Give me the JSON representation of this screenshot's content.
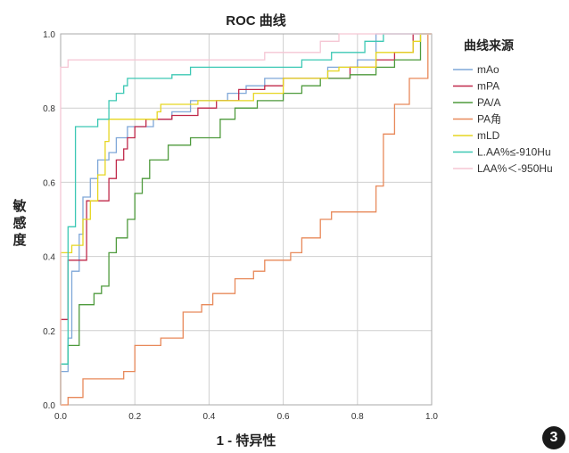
{
  "chart_data": {
    "type": "line",
    "title": "ROC 曲线",
    "xlabel": "1 - 特异性",
    "ylabel": "敏感度",
    "xlim": [
      0,
      1
    ],
    "ylim": [
      0,
      1
    ],
    "xticks": [
      "0.0",
      "0.2",
      "0.4",
      "0.6",
      "0.8",
      "1.0"
    ],
    "yticks": [
      "0.0",
      "0.2",
      "0.4",
      "0.6",
      "0.8",
      "1.0"
    ],
    "grid": true,
    "legend_title": "曲线来源",
    "legend_position": "right",
    "series": [
      {
        "name": "mAo",
        "color": "#7fa7d8",
        "points": [
          [
            0,
            0
          ],
          [
            0,
            0.09
          ],
          [
            0.02,
            0.09
          ],
          [
            0.02,
            0.18
          ],
          [
            0.03,
            0.18
          ],
          [
            0.03,
            0.36
          ],
          [
            0.05,
            0.36
          ],
          [
            0.05,
            0.46
          ],
          [
            0.06,
            0.46
          ],
          [
            0.06,
            0.56
          ],
          [
            0.08,
            0.56
          ],
          [
            0.08,
            0.61
          ],
          [
            0.1,
            0.61
          ],
          [
            0.1,
            0.66
          ],
          [
            0.13,
            0.66
          ],
          [
            0.13,
            0.68
          ],
          [
            0.15,
            0.68
          ],
          [
            0.15,
            0.72
          ],
          [
            0.18,
            0.72
          ],
          [
            0.18,
            0.75
          ],
          [
            0.25,
            0.75
          ],
          [
            0.25,
            0.77
          ],
          [
            0.3,
            0.77
          ],
          [
            0.3,
            0.79
          ],
          [
            0.35,
            0.79
          ],
          [
            0.35,
            0.82
          ],
          [
            0.45,
            0.82
          ],
          [
            0.45,
            0.84
          ],
          [
            0.5,
            0.84
          ],
          [
            0.5,
            0.86
          ],
          [
            0.55,
            0.86
          ],
          [
            0.55,
            0.88
          ],
          [
            0.72,
            0.88
          ],
          [
            0.72,
            0.91
          ],
          [
            0.8,
            0.91
          ],
          [
            0.8,
            0.93
          ],
          [
            0.85,
            0.93
          ],
          [
            0.85,
            1.0
          ],
          [
            1,
            1
          ]
        ]
      },
      {
        "name": "mPA",
        "color": "#c0294a",
        "points": [
          [
            0,
            0
          ],
          [
            0,
            0.23
          ],
          [
            0.02,
            0.23
          ],
          [
            0.02,
            0.39
          ],
          [
            0.07,
            0.39
          ],
          [
            0.07,
            0.55
          ],
          [
            0.13,
            0.55
          ],
          [
            0.13,
            0.61
          ],
          [
            0.15,
            0.61
          ],
          [
            0.15,
            0.66
          ],
          [
            0.17,
            0.66
          ],
          [
            0.17,
            0.69
          ],
          [
            0.18,
            0.69
          ],
          [
            0.18,
            0.72
          ],
          [
            0.2,
            0.72
          ],
          [
            0.2,
            0.75
          ],
          [
            0.23,
            0.75
          ],
          [
            0.23,
            0.77
          ],
          [
            0.3,
            0.77
          ],
          [
            0.3,
            0.78
          ],
          [
            0.37,
            0.78
          ],
          [
            0.37,
            0.8
          ],
          [
            0.42,
            0.8
          ],
          [
            0.42,
            0.82
          ],
          [
            0.48,
            0.82
          ],
          [
            0.48,
            0.85
          ],
          [
            0.55,
            0.85
          ],
          [
            0.55,
            0.86
          ],
          [
            0.6,
            0.86
          ],
          [
            0.6,
            0.88
          ],
          [
            0.78,
            0.88
          ],
          [
            0.78,
            0.91
          ],
          [
            0.85,
            0.91
          ],
          [
            0.85,
            0.93
          ],
          [
            0.9,
            0.93
          ],
          [
            0.9,
            0.95
          ],
          [
            0.95,
            0.95
          ],
          [
            0.95,
            1.0
          ],
          [
            1,
            1
          ]
        ]
      },
      {
        "name": "PA/A",
        "color": "#4e9a3c",
        "points": [
          [
            0,
            0
          ],
          [
            0,
            0.11
          ],
          [
            0.02,
            0.11
          ],
          [
            0.02,
            0.16
          ],
          [
            0.05,
            0.16
          ],
          [
            0.05,
            0.27
          ],
          [
            0.09,
            0.27
          ],
          [
            0.09,
            0.3
          ],
          [
            0.11,
            0.3
          ],
          [
            0.11,
            0.32
          ],
          [
            0.13,
            0.32
          ],
          [
            0.13,
            0.41
          ],
          [
            0.15,
            0.41
          ],
          [
            0.15,
            0.45
          ],
          [
            0.18,
            0.45
          ],
          [
            0.18,
            0.5
          ],
          [
            0.2,
            0.5
          ],
          [
            0.2,
            0.57
          ],
          [
            0.22,
            0.57
          ],
          [
            0.22,
            0.61
          ],
          [
            0.24,
            0.61
          ],
          [
            0.24,
            0.66
          ],
          [
            0.29,
            0.66
          ],
          [
            0.29,
            0.7
          ],
          [
            0.35,
            0.7
          ],
          [
            0.35,
            0.72
          ],
          [
            0.43,
            0.72
          ],
          [
            0.43,
            0.77
          ],
          [
            0.47,
            0.77
          ],
          [
            0.47,
            0.8
          ],
          [
            0.53,
            0.8
          ],
          [
            0.53,
            0.82
          ],
          [
            0.6,
            0.82
          ],
          [
            0.6,
            0.84
          ],
          [
            0.65,
            0.84
          ],
          [
            0.65,
            0.86
          ],
          [
            0.7,
            0.86
          ],
          [
            0.7,
            0.88
          ],
          [
            0.78,
            0.88
          ],
          [
            0.78,
            0.89
          ],
          [
            0.85,
            0.89
          ],
          [
            0.85,
            0.91
          ],
          [
            0.9,
            0.91
          ],
          [
            0.9,
            0.93
          ],
          [
            0.97,
            0.93
          ],
          [
            0.97,
            1.0
          ],
          [
            1,
            1
          ]
        ]
      },
      {
        "name": "PA角",
        "color": "#e8895a",
        "points": [
          [
            0,
            0
          ],
          [
            0.02,
            0
          ],
          [
            0.02,
            0.02
          ],
          [
            0.06,
            0.02
          ],
          [
            0.06,
            0.07
          ],
          [
            0.17,
            0.07
          ],
          [
            0.17,
            0.09
          ],
          [
            0.2,
            0.09
          ],
          [
            0.2,
            0.16
          ],
          [
            0.27,
            0.16
          ],
          [
            0.27,
            0.18
          ],
          [
            0.33,
            0.18
          ],
          [
            0.33,
            0.25
          ],
          [
            0.38,
            0.25
          ],
          [
            0.38,
            0.27
          ],
          [
            0.41,
            0.27
          ],
          [
            0.41,
            0.3
          ],
          [
            0.47,
            0.3
          ],
          [
            0.47,
            0.34
          ],
          [
            0.52,
            0.34
          ],
          [
            0.52,
            0.36
          ],
          [
            0.55,
            0.36
          ],
          [
            0.55,
            0.39
          ],
          [
            0.62,
            0.39
          ],
          [
            0.62,
            0.41
          ],
          [
            0.65,
            0.41
          ],
          [
            0.65,
            0.45
          ],
          [
            0.7,
            0.45
          ],
          [
            0.7,
            0.5
          ],
          [
            0.73,
            0.5
          ],
          [
            0.73,
            0.52
          ],
          [
            0.85,
            0.52
          ],
          [
            0.85,
            0.59
          ],
          [
            0.87,
            0.59
          ],
          [
            0.87,
            0.73
          ],
          [
            0.9,
            0.73
          ],
          [
            0.9,
            0.81
          ],
          [
            0.94,
            0.81
          ],
          [
            0.94,
            0.88
          ],
          [
            0.99,
            0.88
          ],
          [
            0.99,
            1.0
          ],
          [
            1,
            1
          ]
        ]
      },
      {
        "name": "mLD",
        "color": "#e6d620",
        "points": [
          [
            0,
            0
          ],
          [
            0,
            0.41
          ],
          [
            0.03,
            0.41
          ],
          [
            0.03,
            0.43
          ],
          [
            0.06,
            0.43
          ],
          [
            0.06,
            0.5
          ],
          [
            0.08,
            0.5
          ],
          [
            0.08,
            0.55
          ],
          [
            0.1,
            0.55
          ],
          [
            0.1,
            0.62
          ],
          [
            0.12,
            0.62
          ],
          [
            0.12,
            0.71
          ],
          [
            0.13,
            0.71
          ],
          [
            0.13,
            0.77
          ],
          [
            0.26,
            0.77
          ],
          [
            0.26,
            0.79
          ],
          [
            0.27,
            0.79
          ],
          [
            0.27,
            0.81
          ],
          [
            0.37,
            0.81
          ],
          [
            0.37,
            0.82
          ],
          [
            0.52,
            0.82
          ],
          [
            0.52,
            0.84
          ],
          [
            0.6,
            0.84
          ],
          [
            0.6,
            0.88
          ],
          [
            0.72,
            0.88
          ],
          [
            0.72,
            0.9
          ],
          [
            0.75,
            0.9
          ],
          [
            0.75,
            0.91
          ],
          [
            0.85,
            0.91
          ],
          [
            0.85,
            0.95
          ],
          [
            0.95,
            0.95
          ],
          [
            0.95,
            0.98
          ],
          [
            0.97,
            0.98
          ],
          [
            0.97,
            1.0
          ],
          [
            1,
            1
          ]
        ]
      },
      {
        "name": "L.AA%≤-910Hu",
        "color": "#3cc8b4",
        "points": [
          [
            0,
            0
          ],
          [
            0,
            0.11
          ],
          [
            0.02,
            0.11
          ],
          [
            0.02,
            0.48
          ],
          [
            0.04,
            0.48
          ],
          [
            0.04,
            0.75
          ],
          [
            0.1,
            0.75
          ],
          [
            0.1,
            0.77
          ],
          [
            0.13,
            0.77
          ],
          [
            0.13,
            0.82
          ],
          [
            0.15,
            0.82
          ],
          [
            0.15,
            0.84
          ],
          [
            0.17,
            0.84
          ],
          [
            0.17,
            0.86
          ],
          [
            0.18,
            0.86
          ],
          [
            0.18,
            0.88
          ],
          [
            0.3,
            0.88
          ],
          [
            0.3,
            0.89
          ],
          [
            0.35,
            0.89
          ],
          [
            0.35,
            0.91
          ],
          [
            0.65,
            0.91
          ],
          [
            0.65,
            0.93
          ],
          [
            0.73,
            0.93
          ],
          [
            0.73,
            0.95
          ],
          [
            0.82,
            0.95
          ],
          [
            0.82,
            0.98
          ],
          [
            0.87,
            0.98
          ],
          [
            0.87,
            1.0
          ],
          [
            1,
            1
          ]
        ]
      },
      {
        "name": "LAA%＜-950Hu",
        "color": "#f5c6d4",
        "points": [
          [
            0,
            0
          ],
          [
            0,
            0.91
          ],
          [
            0.02,
            0.91
          ],
          [
            0.02,
            0.93
          ],
          [
            0.55,
            0.93
          ],
          [
            0.55,
            0.95
          ],
          [
            0.7,
            0.95
          ],
          [
            0.7,
            0.98
          ],
          [
            0.75,
            0.98
          ],
          [
            0.75,
            1.0
          ],
          [
            1,
            1
          ]
        ]
      }
    ]
  }
}
